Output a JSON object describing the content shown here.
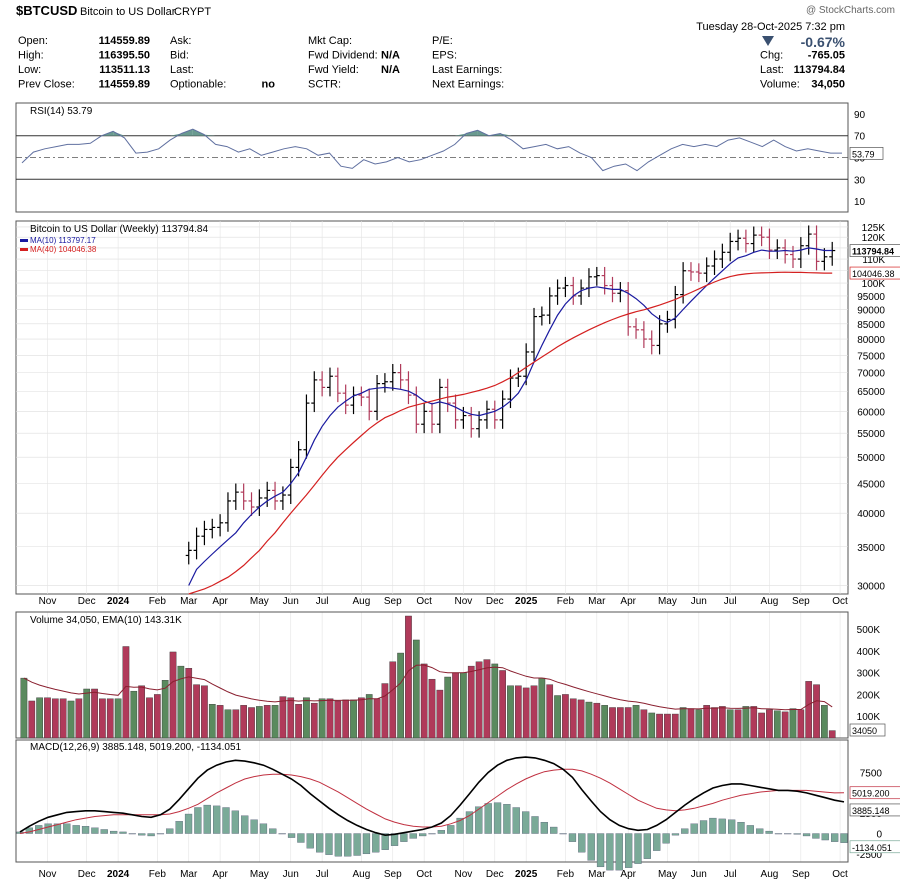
{
  "header": {
    "symbol": "$BTCUSD",
    "name": "Bitcoin to US Dollar",
    "exchange": "CRYPT",
    "watermark": "@ StockCharts.com",
    "datetime": "Tuesday   28-Oct-2025   7:32 pm",
    "pct_change": "-0.67%",
    "fields_col1": [
      {
        "label": "Open:",
        "value": "114559.89"
      },
      {
        "label": "High:",
        "value": "116395.50"
      },
      {
        "label": "Low:",
        "value": "113511.13"
      },
      {
        "label": "Prev Close:",
        "value": "114559.89"
      }
    ],
    "fields_col2": [
      {
        "label": "Ask:",
        "value": ""
      },
      {
        "label": "Bid:",
        "value": ""
      },
      {
        "label": "Last:",
        "value": ""
      },
      {
        "label": "Optionable:",
        "value": "no"
      }
    ],
    "fields_col3": [
      {
        "label": "Mkt Cap:",
        "value": ""
      },
      {
        "label": "Fwd Dividend:",
        "value": "N/A"
      },
      {
        "label": "Fwd Yield:",
        "value": "N/A"
      },
      {
        "label": "SCTR:",
        "value": ""
      }
    ],
    "fields_col4": [
      {
        "label": "P/E:",
        "value": ""
      },
      {
        "label": "EPS:",
        "value": ""
      },
      {
        "label": "Last Earnings:",
        "value": ""
      },
      {
        "label": "Next Earnings:",
        "value": ""
      }
    ],
    "fields_col5": [
      {
        "label": "",
        "value": ""
      },
      {
        "label": "Chg:",
        "value": "-765.05"
      },
      {
        "label": "Last:",
        "value": "113794.84"
      },
      {
        "label": "Volume:",
        "value": "34,050"
      }
    ]
  },
  "colors": {
    "up": "#5a8a5e",
    "down": "#b03a5a",
    "ma10": "#1a1aa0",
    "ma40": "#d42020",
    "macd": "#000000",
    "signal": "#c03040",
    "hist": "#7aaa98",
    "rsi_fill": "#6a9a90",
    "rsi_line": "#6070a0"
  },
  "chart_data": [
    {
      "type": "line",
      "panel": "rsi",
      "title": "RSI(14) 53.79",
      "yticks": [
        10,
        30,
        50,
        70,
        90
      ],
      "ylim": [
        0,
        100
      ],
      "overbought": 70,
      "oversold": 30,
      "last_label": "53.79",
      "values": [
        45,
        55,
        58,
        60,
        62,
        62,
        63,
        70,
        74,
        68,
        54,
        55,
        58,
        66,
        72,
        76,
        71,
        62,
        60,
        55,
        58,
        52,
        55,
        58,
        60,
        58,
        52,
        54,
        42,
        40,
        48,
        44,
        46,
        50,
        46,
        48,
        52,
        56,
        62,
        72,
        75,
        70,
        72,
        66,
        58,
        60,
        62,
        58,
        60,
        54,
        50,
        38,
        42,
        44,
        38,
        46,
        52,
        58,
        62,
        60,
        62,
        60,
        66,
        68,
        64,
        60,
        66,
        60,
        56,
        58,
        56,
        54,
        54
      ]
    },
    {
      "type": "ohlc",
      "panel": "price",
      "title": "Bitcoin to US Dollar (Weekly) 113794.84",
      "log_scale": true,
      "ylim": [
        29000,
        128000
      ],
      "yticks": [
        30000,
        35000,
        40000,
        45000,
        50000,
        55000,
        60000,
        65000,
        70000,
        75000,
        80000,
        85000,
        90000,
        95000,
        100000,
        105000,
        110000,
        115000,
        120000,
        125000
      ],
      "ytick_labels": [
        "30000",
        "35000",
        "40000",
        "45000",
        "50000",
        "55000",
        "60000",
        "65000",
        "70000",
        "75000",
        "80000",
        "85000",
        "90000",
        "95000",
        "100K",
        "105K",
        "110K",
        "115K",
        "120K",
        "125K"
      ],
      "legend": [
        {
          "name": "MA(10) 113797.17",
          "color": "#1a1aa0"
        },
        {
          "name": "MA(40) 104046.38",
          "color": "#d42020"
        }
      ],
      "price_label": "113794.84",
      "ma40_label": "104046.38",
      "x_labels": [
        "Nov",
        "Dec",
        "2024",
        "Feb",
        "Mar",
        "Apr",
        "May",
        "Jun",
        "Jul",
        "Aug",
        "Sep",
        "Oct",
        "Nov",
        "Dec",
        "2025",
        "Feb",
        "Mar",
        "Apr",
        "May",
        "Jun",
        "Jul",
        "Aug",
        "Sep",
        "Oct"
      ],
      "x_label_weeks": [
        3,
        8,
        12,
        17,
        21,
        25,
        30,
        34,
        38,
        43,
        47,
        51,
        56,
        60,
        64,
        69,
        73,
        77,
        82,
        86,
        90,
        95,
        99,
        104
      ],
      "closes": [
        34500,
        36500,
        37500,
        37800,
        38500,
        42000,
        43500,
        42000,
        41000,
        42500,
        43800,
        42000,
        43000,
        48000,
        51500,
        62000,
        68000,
        66000,
        69000,
        64500,
        61500,
        64000,
        63500,
        60000,
        67000,
        67500,
        70000,
        68000,
        64000,
        57000,
        60000,
        57000,
        66000,
        62000,
        58000,
        59000,
        56000,
        58000,
        60500,
        58000,
        63000,
        68500,
        69000,
        76000,
        87500,
        88000,
        95000,
        98000,
        99000,
        95000,
        98000,
        102500,
        103000,
        99000,
        96000,
        97000,
        84000,
        83000,
        80000,
        78000,
        85000,
        86500,
        95500,
        105000,
        104500,
        104000,
        107000,
        110000,
        113000,
        118000,
        119500,
        117000,
        121000,
        120000,
        114000,
        115000,
        112000,
        110000,
        116000,
        121500,
        109000,
        111000,
        113794
      ],
      "ma10": [
        30000,
        32000,
        33000,
        34000,
        35000,
        36000,
        37000,
        38500,
        39800,
        41000,
        42000,
        42800,
        43500,
        45000,
        47000,
        50000,
        53500,
        56500,
        59000,
        61000,
        62500,
        63800,
        64500,
        65500,
        65800,
        66000,
        65800,
        65500,
        65000,
        64000,
        62500,
        61800,
        62300,
        61800,
        61000,
        60000,
        59300,
        59000,
        59500,
        60000,
        61000,
        62500,
        64500,
        68000,
        73000,
        78000,
        83000,
        88000,
        92000,
        95000,
        97000,
        98000,
        98500,
        98000,
        97500,
        97500,
        96000,
        94000,
        91500,
        88500,
        86500,
        85500,
        87000,
        90000,
        93000,
        96000,
        99000,
        102000,
        105000,
        108000,
        110500,
        111500,
        113000,
        114000,
        113500,
        113500,
        113800,
        113500,
        114000,
        115000,
        114500,
        113800,
        113797
      ],
      "ma40": [
        29000,
        29300,
        29600,
        30000,
        30500,
        31000,
        31700,
        32500,
        33500,
        34500,
        35800,
        37000,
        38500,
        40000,
        41500,
        43000,
        44700,
        46500,
        48300,
        50000,
        51500,
        53000,
        54500,
        56000,
        57300,
        58500,
        59300,
        60200,
        61000,
        61500,
        62000,
        62500,
        63000,
        63500,
        63800,
        64200,
        64700,
        65200,
        65800,
        66500,
        67500,
        68600,
        70000,
        71500,
        73000,
        74500,
        76000,
        77600,
        79000,
        80400,
        81700,
        83000,
        84200,
        85400,
        86500,
        87500,
        88400,
        89200,
        89900,
        90700,
        91600,
        92600,
        93700,
        95000,
        96300,
        97700,
        99100,
        100400,
        101600,
        102600,
        103300,
        103700,
        104000,
        104100,
        104200,
        104300,
        104400,
        104300,
        104300,
        104200,
        104100,
        104046,
        104046
      ]
    },
    {
      "type": "bar",
      "panel": "volume",
      "title": "Volume 34,050, EMA(10) 143.31K",
      "ylim": [
        0,
        560000
      ],
      "yticks": [
        100000,
        200000,
        300000,
        400000,
        500000
      ],
      "ytick_labels": [
        "100K",
        "200K",
        "300K",
        "400K",
        "500K"
      ],
      "last_label": "34050",
      "values": [
        275000,
        170000,
        185000,
        185000,
        180000,
        180000,
        170000,
        180000,
        225000,
        225000,
        180000,
        180000,
        180000,
        420000,
        215000,
        240000,
        185000,
        200000,
        265000,
        395000,
        330000,
        320000,
        245000,
        240000,
        155000,
        150000,
        130000,
        130000,
        150000,
        140000,
        145000,
        150000,
        150000,
        190000,
        185000,
        155000,
        185000,
        160000,
        180000,
        180000,
        170000,
        175000,
        175000,
        185000,
        200000,
        180000,
        250000,
        350000,
        390000,
        560000,
        450000,
        340000,
        270000,
        220000,
        280000,
        300000,
        300000,
        330000,
        350000,
        360000,
        340000,
        310000,
        240000,
        240000,
        230000,
        240000,
        275000,
        245000,
        195000,
        200000,
        180000,
        175000,
        165000,
        160000,
        150000,
        140000,
        140000,
        140000,
        150000,
        130000,
        115000,
        110000,
        110000,
        110000,
        140000,
        135000,
        130000,
        150000,
        140000,
        145000,
        130000,
        130000,
        145000,
        145000,
        115000,
        130000,
        125000,
        120000,
        135000,
        130000,
        260000,
        245000,
        150000,
        34050
      ],
      "up_down": "alt"
    },
    {
      "type": "line",
      "panel": "macd",
      "title": "MACD(12,26,9) 3885.148, 5019.200, -1134.051",
      "ylim": [
        -3500,
        11500
      ],
      "yticks": [
        -2500,
        0,
        2500,
        5000,
        7500
      ],
      "labels": {
        "macd": "3885.148",
        "signal": "5019.200",
        "hist": "-1134.051"
      },
      "macd": [
        200,
        900,
        1500,
        2000,
        2300,
        2600,
        2700,
        2800,
        2800,
        2700,
        2600,
        2500,
        2300,
        2100,
        2000,
        2300,
        3000,
        4200,
        5500,
        6800,
        7800,
        8400,
        8800,
        9000,
        8900,
        8700,
        8400,
        7900,
        7300,
        6700,
        5900,
        4900,
        4000,
        3100,
        2300,
        1600,
        1000,
        500,
        100,
        -200,
        -100,
        100,
        300,
        500,
        800,
        1300,
        2200,
        3500,
        4900,
        6300,
        7500,
        8400,
        9000,
        9300,
        9400,
        9300,
        9000,
        8600,
        7900,
        6900,
        5400,
        4000,
        2700,
        1700,
        1000,
        600,
        400,
        500,
        1000,
        1700,
        2600,
        3500,
        4300,
        5000,
        5600,
        5900,
        6100,
        6100,
        5900,
        5700,
        5500,
        5300,
        5300,
        5200,
        5000,
        4700,
        4400,
        4100,
        3885
      ],
      "signal": [
        0,
        200,
        500,
        800,
        1100,
        1400,
        1700,
        1900,
        2100,
        2200,
        2300,
        2300,
        2300,
        2300,
        2300,
        2300,
        2400,
        2700,
        3100,
        3600,
        4300,
        5000,
        5600,
        6200,
        6700,
        7000,
        7200,
        7300,
        7300,
        7200,
        7000,
        6700,
        6300,
        5700,
        5100,
        4400,
        3700,
        3000,
        2400,
        1800,
        1400,
        1100,
        900,
        800,
        800,
        900,
        1200,
        1600,
        2200,
        3000,
        3800,
        4600,
        5400,
        6100,
        6700,
        7200,
        7600,
        7800,
        7900,
        7900,
        7700,
        7300,
        6800,
        6200,
        5500,
        4800,
        4100,
        3600,
        3100,
        2900,
        2800,
        2900,
        3100,
        3400,
        3700,
        4100,
        4400,
        4700,
        4900,
        5100,
        5200,
        5300,
        5300,
        5300,
        5300,
        5200,
        5100,
        5000,
        5019
      ],
      "hist": [
        200,
        700,
        1000,
        1200,
        1200,
        1200,
        1000,
        900,
        700,
        500,
        300,
        200,
        0,
        -200,
        -300,
        0,
        600,
        1500,
        2400,
        3200,
        3500,
        3400,
        3200,
        2800,
        2200,
        1700,
        1200,
        600,
        0,
        -500,
        -1100,
        -1800,
        -2300,
        -2600,
        -2800,
        -2800,
        -2700,
        -2500,
        -2300,
        -2000,
        -1500,
        -1000,
        -600,
        -300,
        0,
        400,
        1000,
        1900,
        2700,
        3300,
        3700,
        3800,
        3600,
        3200,
        2700,
        2100,
        1400,
        800,
        0,
        -1000,
        -2300,
        -3300,
        -4100,
        -4500,
        -4500,
        -4200,
        -3700,
        -3100,
        -2100,
        -1200,
        -200,
        600,
        1200,
        1600,
        1900,
        1800,
        1700,
        1400,
        1000,
        600,
        300,
        0,
        0,
        -100,
        -300,
        -600,
        -800,
        -1000,
        -1134
      ]
    }
  ]
}
